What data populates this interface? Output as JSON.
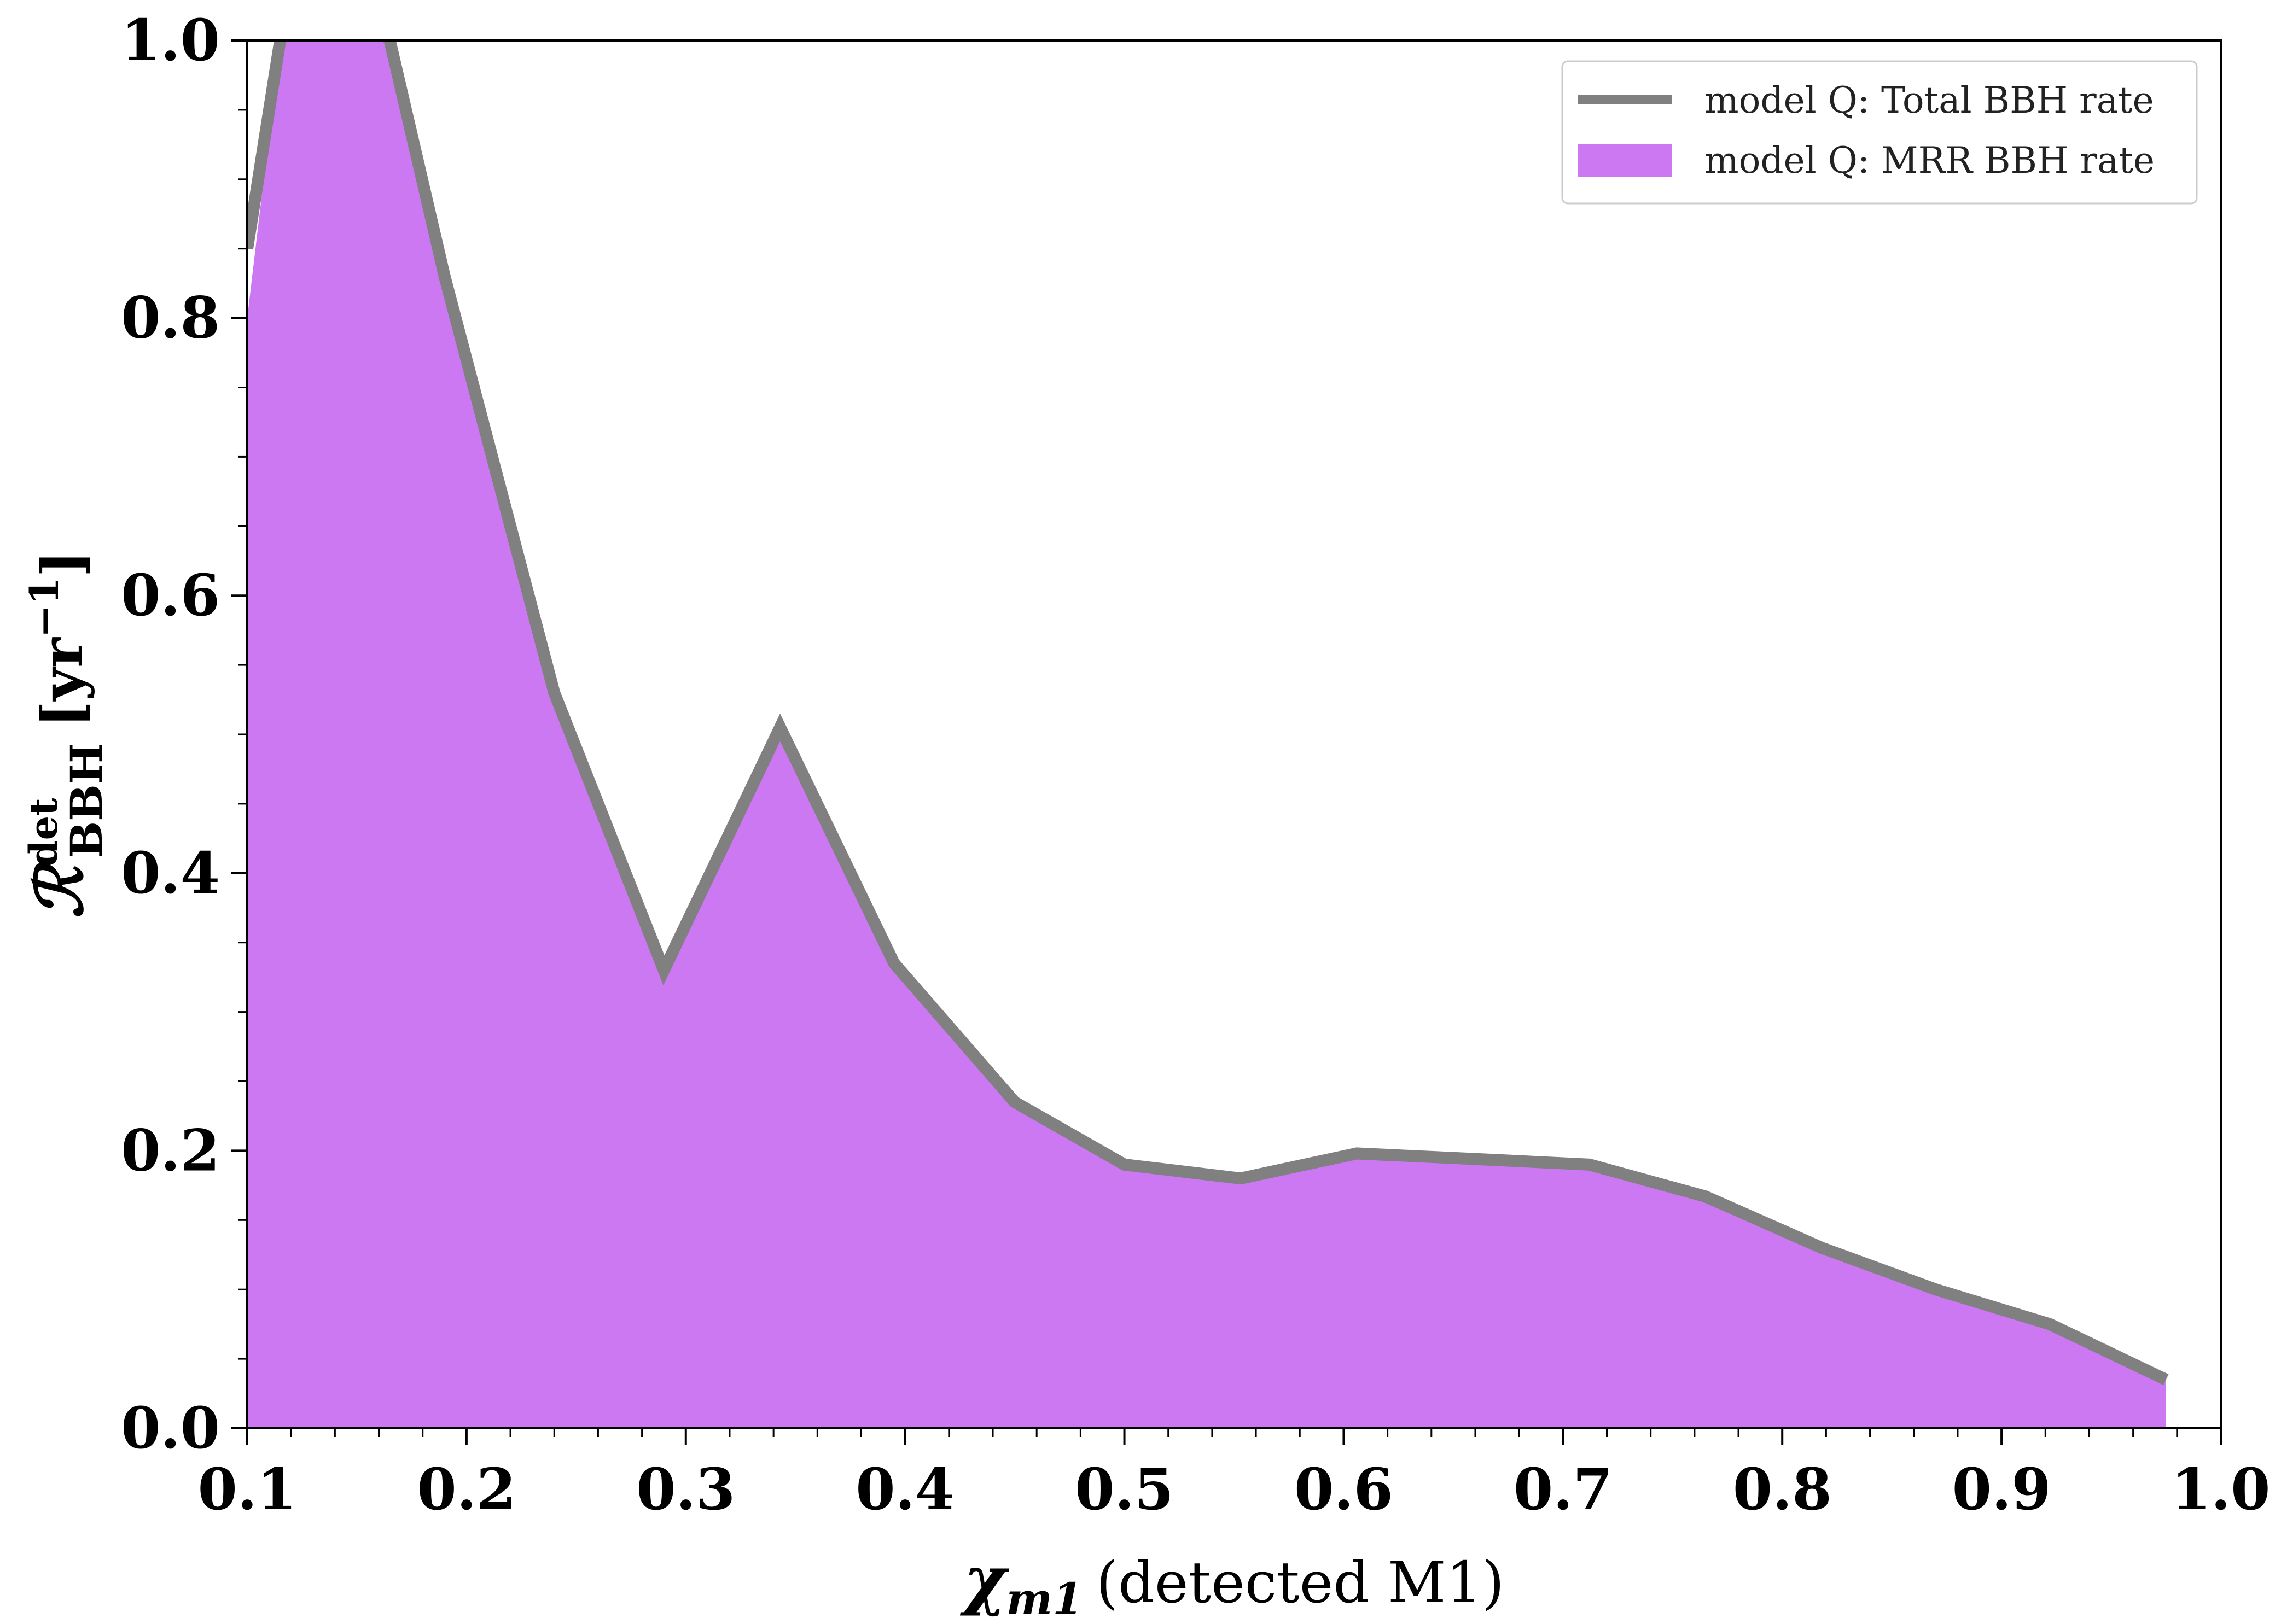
{
  "chart_data": {
    "type": "area",
    "x": [
      0.1,
      0.115,
      0.135,
      0.165,
      0.19,
      0.24,
      0.29,
      0.343,
      0.395,
      0.45,
      0.5,
      0.553,
      0.606,
      0.66,
      0.712,
      0.765,
      0.818,
      0.87,
      0.922,
      0.975
    ],
    "series": [
      {
        "name": "model Q: Total BBH rate",
        "kind": "line",
        "color": "#808080",
        "values": [
          0.85,
          1.0,
          1.05,
          1.0,
          0.83,
          0.53,
          0.33,
          0.505,
          0.335,
          0.235,
          0.19,
          0.18,
          0.198,
          0.194,
          0.19,
          0.167,
          0.13,
          0.1,
          0.075,
          0.035
        ]
      },
      {
        "name": "model Q: MRR BBH rate",
        "kind": "fill",
        "color": "#cb78f2",
        "values": [
          0.8,
          1.0,
          1.05,
          1.0,
          0.83,
          0.53,
          0.33,
          0.505,
          0.335,
          0.235,
          0.19,
          0.18,
          0.198,
          0.194,
          0.19,
          0.167,
          0.13,
          0.1,
          0.075,
          0.035
        ]
      }
    ],
    "xlabel_symbol": "χ",
    "xlabel_subscript": "m1",
    "xlabel_text": "(detected M1)",
    "ylabel_symbol": "ℛ",
    "ylabel_superscript": "det",
    "ylabel_subscript": "BBH",
    "ylabel_unit": "[yr",
    "ylabel_unit_exp": "−1",
    "ylabel_unit_close": "]",
    "xlim": [
      0.1,
      1.0
    ],
    "ylim": [
      0.0,
      1.0
    ],
    "xticks": [
      "0.1",
      "0.2",
      "0.3",
      "0.4",
      "0.5",
      "0.6",
      "0.7",
      "0.8",
      "0.9",
      "1.0"
    ],
    "yticks": [
      "0.0",
      "0.2",
      "0.4",
      "0.6",
      "0.8",
      "1.0"
    ],
    "grid": false,
    "legend_position": "top-right"
  }
}
